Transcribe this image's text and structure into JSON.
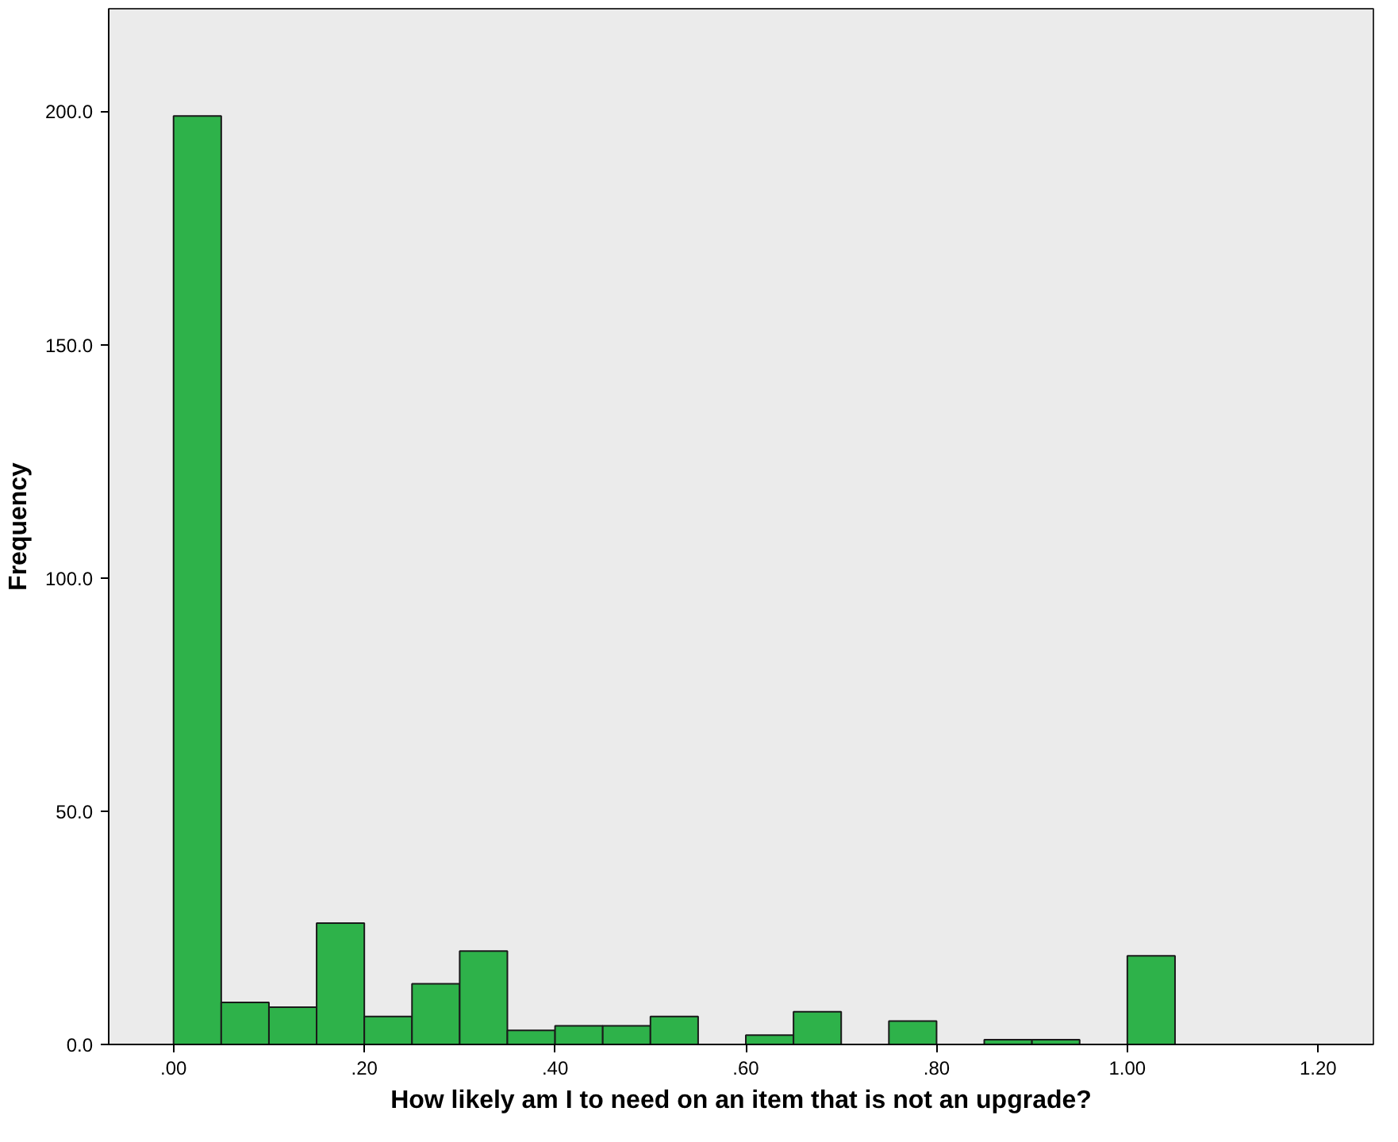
{
  "chart_data": {
    "type": "histogram",
    "xlabel": "How likely am I to need on an item that is not an upgrade?",
    "ylabel": "Frequency",
    "bins": [
      0,
      0.05,
      0.1,
      0.15,
      0.2,
      0.25,
      0.3,
      0.35,
      0.4,
      0.45,
      0.5,
      0.55,
      0.6,
      0.65,
      0.7,
      0.75,
      0.8,
      0.85,
      0.9,
      0.95,
      1.0,
      1.05
    ],
    "values": [
      199,
      9,
      8,
      26,
      6,
      13,
      20,
      3,
      4,
      4,
      6,
      0,
      2,
      7,
      0,
      5,
      0,
      1,
      1,
      0,
      19
    ],
    "color": "#2eb24a",
    "xlim": [
      -0.068,
      1.258
    ],
    "ylim": [
      0,
      222
    ],
    "xticks": [
      {
        "value": 0,
        "label": ".00"
      },
      {
        "value": 0.2,
        "label": ".20"
      },
      {
        "value": 0.4,
        "label": ".40"
      },
      {
        "value": 0.6,
        "label": ".60"
      },
      {
        "value": 0.8,
        "label": ".80"
      },
      {
        "value": 1.0,
        "label": "1.00"
      },
      {
        "value": 1.2,
        "label": "1.20"
      }
    ],
    "yticks": [
      {
        "value": 0,
        "label": "0.0"
      },
      {
        "value": 50,
        "label": "50.0"
      },
      {
        "value": 100,
        "label": "100.0"
      },
      {
        "value": 150,
        "label": "150.0"
      },
      {
        "value": 200,
        "label": "200.0"
      }
    ],
    "grid": false
  }
}
